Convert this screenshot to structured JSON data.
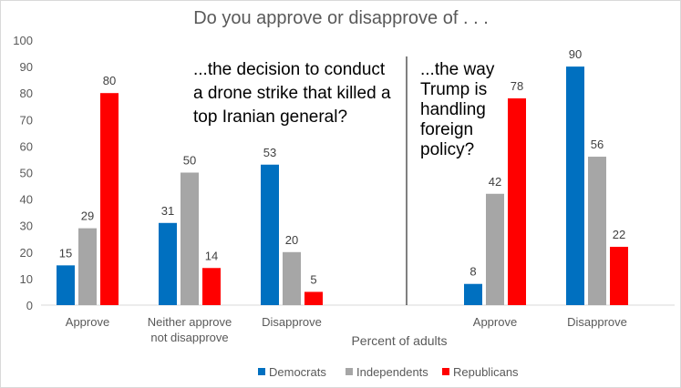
{
  "chart_data": {
    "type": "bar",
    "title": "Do you approve or disapprove of . . .",
    "xlabel": "Percent of adults",
    "ylabel": "",
    "ylim": [
      0,
      100
    ],
    "yticks": [
      0,
      10,
      20,
      30,
      40,
      50,
      60,
      70,
      80,
      90,
      100
    ],
    "grid": false,
    "legend_position": "bottom",
    "categories": [
      [
        "Approve"
      ],
      [
        "Neither approve",
        "not disapprove"
      ],
      [
        "Disapprove"
      ],
      [
        "Approve"
      ],
      [
        "Disapprove"
      ]
    ],
    "series": [
      {
        "name": "Democrats",
        "color": "#0070c0",
        "values": [
          15,
          31,
          53,
          8,
          90
        ]
      },
      {
        "name": "Independents",
        "color": "#a6a6a6",
        "values": [
          29,
          50,
          20,
          42,
          56
        ]
      },
      {
        "name": "Republicans",
        "color": "#ff0000",
        "values": [
          80,
          14,
          5,
          78,
          22
        ]
      }
    ],
    "annotations": [
      {
        "group": "left",
        "lines": [
          "...the decision to conduct",
          "a drone strike that killed a",
          "top Iranian general?"
        ]
      },
      {
        "group": "right",
        "lines": [
          "...the way",
          "Trump is",
          "handling",
          "foreign",
          "policy?"
        ]
      }
    ],
    "axis_color": "#d9d9d9",
    "separator_color": "#000000"
  }
}
